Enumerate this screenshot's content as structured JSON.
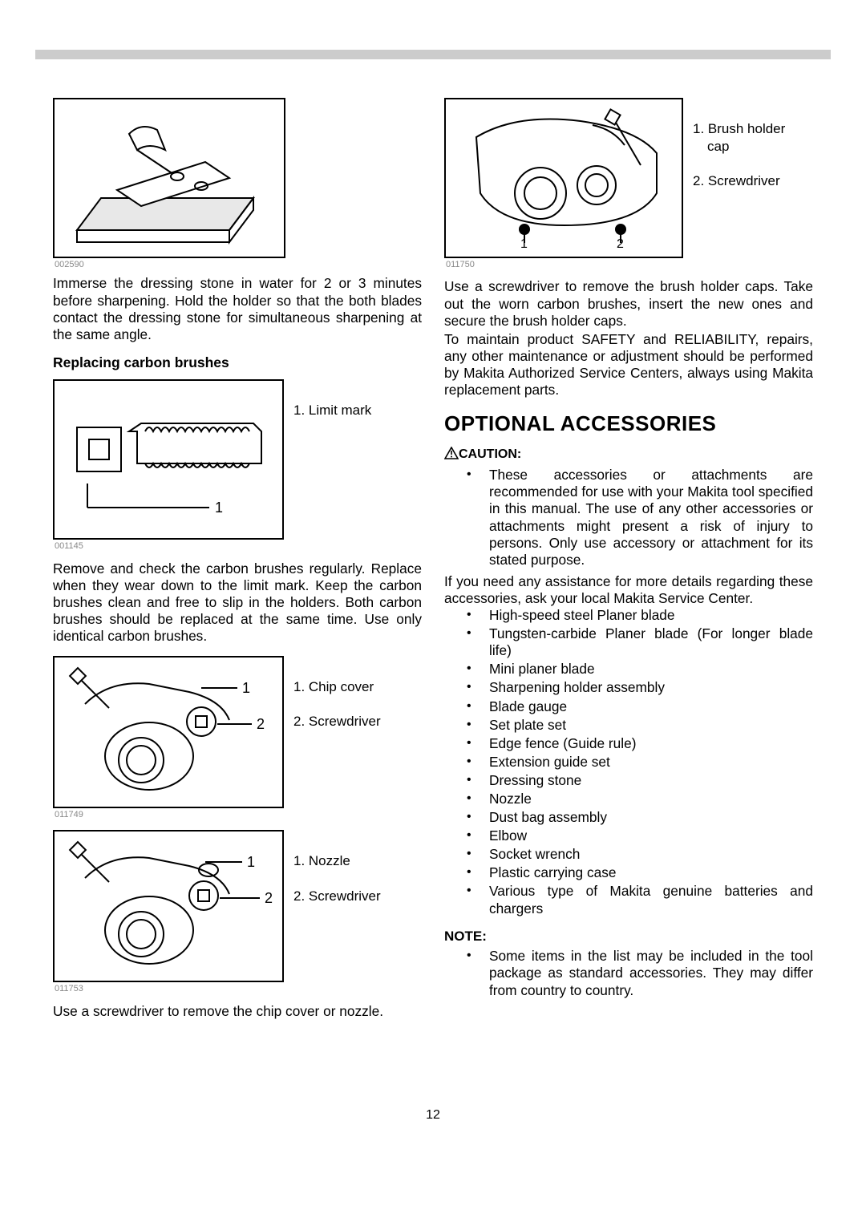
{
  "pageNumber": "12",
  "left": {
    "fig1": {
      "id": "002590"
    },
    "para1": "Immerse the dressing stone in water for 2 or 3 minutes before sharpening. Hold the holder so that the both blades contact the dressing stone for simultaneous sharpening at the same angle.",
    "subhead1": "Replacing carbon brushes",
    "fig2": {
      "id": "001145",
      "label1": "1. Limit mark"
    },
    "para2": "Remove and check the carbon brushes regularly. Replace when they wear down to the limit mark. Keep the carbon brushes clean and free to slip in the holders. Both carbon brushes should be replaced at the same time. Use only identical carbon brushes.",
    "fig3": {
      "id": "011749",
      "label1": "1. Chip cover",
      "label2": "2. Screwdriver"
    },
    "fig4": {
      "id": "011753",
      "label1": "1. Nozzle",
      "label2": "2. Screwdriver"
    },
    "para3": "Use a screwdriver to remove the chip cover or nozzle."
  },
  "right": {
    "fig5": {
      "id": "011750",
      "label1": "1. Brush holder",
      "label1b": "cap",
      "label2": "2. Screwdriver"
    },
    "para1": "Use a screwdriver to remove the brush holder caps. Take out the worn carbon brushes, insert the new ones and secure the brush holder caps.",
    "para2": "To maintain product SAFETY and RELIABILITY, repairs, any other maintenance or adjustment should be performed by Makita Authorized Service Centers, always using Makita replacement parts.",
    "sectionTitle": "OPTIONAL ACCESSORIES",
    "cautionLabel": "CAUTION:",
    "cautionText": "These accessories or attachments are recommended for use with your Makita tool specified in this manual. The use of any other accessories or attachments might present a risk of injury to persons. Only use accessory or attachment for its stated purpose.",
    "para3": "If you need any assistance for more details regarding these accessories, ask your local Makita Service Center.",
    "accessories": [
      "High-speed steel Planer blade",
      "Tungsten-carbide Planer blade (For longer blade life)",
      "Mini planer blade",
      "Sharpening holder assembly",
      "Blade gauge",
      "Set plate set",
      "Edge fence (Guide rule)",
      "Extension guide set",
      "Dressing stone",
      "Nozzle",
      "Dust bag assembly",
      "Elbow",
      "Socket wrench",
      "Plastic carrying case",
      "Various type of Makita genuine batteries and chargers"
    ],
    "noteLabel": "NOTE:",
    "noteText": "Some items in the list may be included in the tool package as standard accessories. They may differ from country to country."
  }
}
